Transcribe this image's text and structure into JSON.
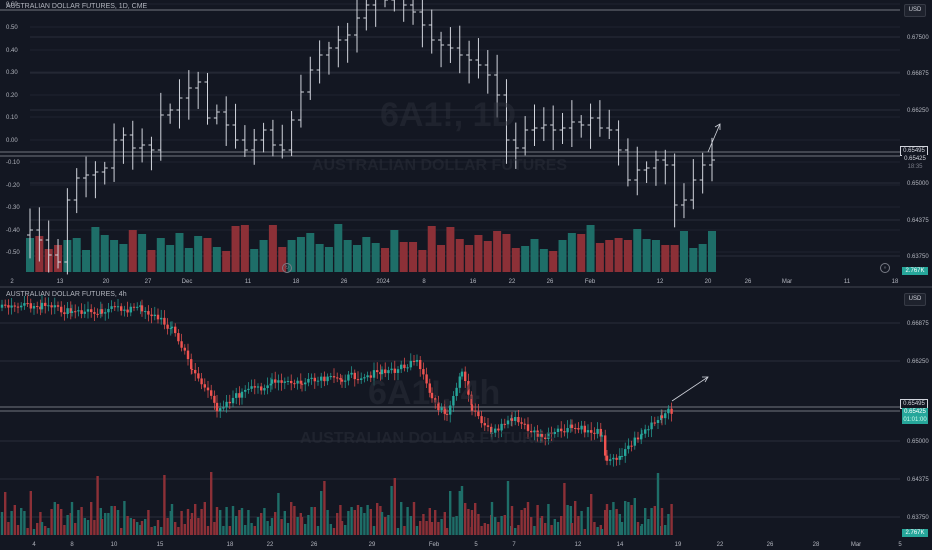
{
  "top_chart": {
    "legend": "AUSTRALIAN DOLLAR FUTURES, 1D, CME",
    "currency": "USD",
    "watermark_symbol": "6A1!, 1D",
    "watermark_name": "AUSTRALIAN DOLLAR FUTURES",
    "left_axis_labels": [
      "0.60",
      "0.50",
      "0.40",
      "0.30",
      "0.20",
      "0.10",
      "0.00",
      "-0.10",
      "-0.20",
      "-0.30",
      "-0.40",
      "-0.50"
    ],
    "right_axis_labels": [
      "0.67500",
      "0.66875",
      "0.66250",
      "0.65000",
      "0.64375",
      "0.63750"
    ],
    "price_tag_top": "0.65495",
    "price_tag_mid": "0.65425",
    "price_tag_small": "18:35",
    "volume_tag": "2.767K",
    "x_labels": [
      "2",
      "13",
      "20",
      "27",
      "Dec",
      "11",
      "18",
      "26",
      "2024",
      "8",
      "16",
      "22",
      "26",
      "Feb",
      "12",
      "20",
      "26",
      "Mar",
      "11",
      "18"
    ]
  },
  "bottom_chart": {
    "legend": "AUSTRALIAN DOLLAR FUTURES, 4h",
    "currency": "USD",
    "watermark_symbol": "6A1!, 4h",
    "watermark_name": "AUSTRALIAN DOLLAR FUTURES",
    "right_axis_labels": [
      "0.66875",
      "0.66250",
      "0.65000",
      "0.64375",
      "0.63750"
    ],
    "price_tag_top": "0.65495",
    "price_tag_mid": "0.65425",
    "price_tag_small": "01:01:00",
    "volume_tag": "2.767K",
    "x_labels": [
      "4",
      "8",
      "10",
      "15",
      "18",
      "22",
      "26",
      "29",
      "Feb",
      "5",
      "7",
      "12",
      "14",
      "19",
      "22",
      "26",
      "28",
      "Mar",
      "5"
    ]
  },
  "colors": {
    "up": "#26a69a",
    "down": "#ef5350",
    "vol_up": "#1e6e68",
    "vol_down": "#8c3037",
    "bars": "#d1d4dc"
  }
}
